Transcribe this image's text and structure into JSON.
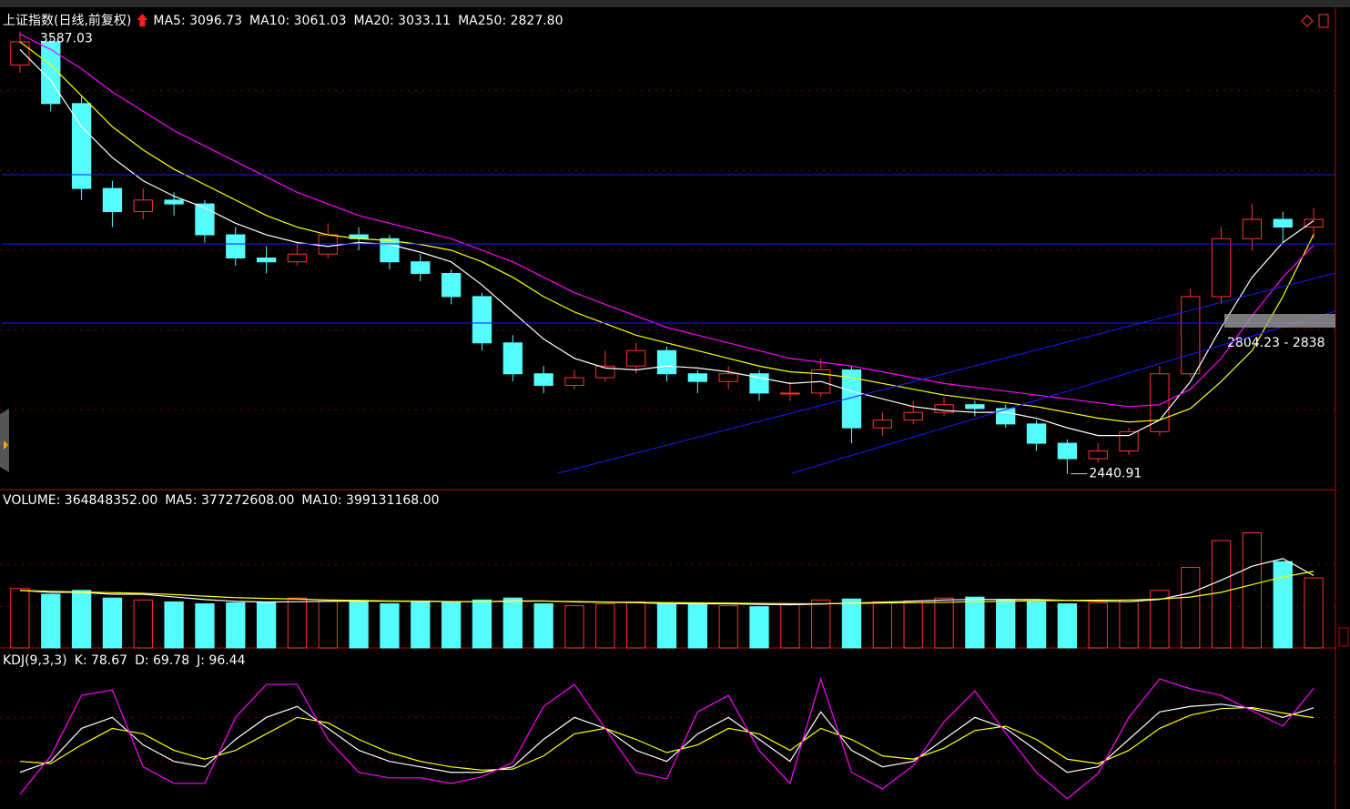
{
  "chart_data": [
    {
      "type": "candlestick",
      "title": "上证指数(日线,前复权)",
      "up_color": "#ff3232",
      "down_color": "#54fcfc",
      "candles": [
        [
          3500,
          3587.03,
          3480,
          3560
        ],
        [
          3560,
          3570,
          3380,
          3400
        ],
        [
          3400,
          3420,
          3150,
          3180
        ],
        [
          3180,
          3200,
          3080,
          3120
        ],
        [
          3120,
          3180,
          3100,
          3150
        ],
        [
          3150,
          3170,
          3110,
          3140
        ],
        [
          3140,
          3150,
          3040,
          3060
        ],
        [
          3060,
          3080,
          2980,
          3000
        ],
        [
          3000,
          3030,
          2960,
          2990
        ],
        [
          2990,
          3040,
          2980,
          3010
        ],
        [
          3010,
          3090,
          3000,
          3060
        ],
        [
          3060,
          3080,
          3020,
          3050
        ],
        [
          3050,
          3060,
          2970,
          2990
        ],
        [
          2990,
          3010,
          2940,
          2960
        ],
        [
          2960,
          2970,
          2880,
          2900
        ],
        [
          2900,
          2910,
          2760,
          2780
        ],
        [
          2780,
          2800,
          2680,
          2700
        ],
        [
          2700,
          2720,
          2650,
          2670
        ],
        [
          2670,
          2710,
          2660,
          2690
        ],
        [
          2690,
          2760,
          2680,
          2720
        ],
        [
          2720,
          2780,
          2700,
          2760
        ],
        [
          2760,
          2770,
          2680,
          2700
        ],
        [
          2700,
          2710,
          2650,
          2680
        ],
        [
          2680,
          2720,
          2660,
          2700
        ],
        [
          2700,
          2710,
          2630,
          2650
        ],
        [
          2650,
          2680,
          2630,
          2650
        ],
        [
          2650,
          2740,
          2640,
          2710
        ],
        [
          2710,
          2720,
          2520,
          2560
        ],
        [
          2560,
          2600,
          2540,
          2580
        ],
        [
          2580,
          2630,
          2570,
          2600
        ],
        [
          2600,
          2640,
          2590,
          2620
        ],
        [
          2620,
          2630,
          2590,
          2610
        ],
        [
          2610,
          2620,
          2560,
          2570
        ],
        [
          2570,
          2580,
          2500,
          2520
        ],
        [
          2520,
          2530,
          2440.91,
          2480
        ],
        [
          2480,
          2520,
          2470,
          2500
        ],
        [
          2500,
          2560,
          2490,
          2550
        ],
        [
          2550,
          2720,
          2540,
          2700
        ],
        [
          2700,
          2920,
          2690,
          2900
        ],
        [
          2900,
          3080,
          2880,
          3050
        ],
        [
          3050,
          3140,
          3020,
          3100
        ],
        [
          3100,
          3120,
          3040,
          3080
        ],
        [
          3080,
          3130,
          3050,
          3100
        ]
      ],
      "series": [
        {
          "name": "MA5",
          "color": "#ffffff",
          "values": [
            3540,
            3460,
            3340,
            3260,
            3200,
            3160,
            3130,
            3090,
            3060,
            3040,
            3030,
            3040,
            3035,
            3015,
            2990,
            2930,
            2860,
            2790,
            2740,
            2715,
            2710,
            2720,
            2715,
            2705,
            2690,
            2675,
            2680,
            2655,
            2635,
            2615,
            2605,
            2600,
            2600,
            2585,
            2560,
            2540,
            2540,
            2580,
            2680,
            2820,
            2950,
            3040,
            3096.73
          ]
        },
        {
          "name": "MA10",
          "color": "#ffff00",
          "values": [
            3560,
            3500,
            3420,
            3340,
            3280,
            3230,
            3190,
            3150,
            3110,
            3080,
            3060,
            3050,
            3045,
            3035,
            3020,
            2990,
            2950,
            2900,
            2860,
            2830,
            2800,
            2780,
            2760,
            2740,
            2720,
            2705,
            2700,
            2690,
            2675,
            2660,
            2645,
            2635,
            2625,
            2615,
            2600,
            2585,
            2575,
            2580,
            2610,
            2680,
            2760,
            2900,
            3061.03
          ]
        },
        {
          "name": "MA20",
          "color": "#ff00ff",
          "values": [
            3580,
            3540,
            3490,
            3430,
            3380,
            3330,
            3290,
            3250,
            3210,
            3170,
            3140,
            3110,
            3090,
            3070,
            3050,
            3020,
            2990,
            2950,
            2910,
            2880,
            2850,
            2820,
            2800,
            2780,
            2760,
            2740,
            2730,
            2720,
            2705,
            2690,
            2675,
            2665,
            2655,
            2645,
            2635,
            2625,
            2615,
            2620,
            2660,
            2740,
            2850,
            2950,
            3033.11
          ]
        }
      ],
      "legend": [
        {
          "label": "MA5: 3096.73",
          "value": 3096.73,
          "color": "#ffffff"
        },
        {
          "label": "MA10: 3061.03",
          "value": 3061.03,
          "color": "#ffff00"
        },
        {
          "label": "MA20: 3033.11",
          "value": 3033.11,
          "color": "#ff00ff"
        },
        {
          "label": "MA250: 2827.80",
          "value": 2827.8,
          "color": "#00ff00"
        }
      ],
      "annotations": [
        "2804.23 - 2838"
      ],
      "ylim": [
        2400,
        3640
      ],
      "grid": true
    },
    {
      "type": "volume",
      "values": [
        310000000.0,
        280000000.0,
        300000000.0,
        260000000.0,
        250000000.0,
        240000000.0,
        230000000.0,
        235000000.0,
        240000000.0,
        260000000.0,
        250000000.0,
        240000000.0,
        230000000.0,
        245000000.0,
        240000000.0,
        250000000.0,
        260000000.0,
        230000000.0,
        220000000.0,
        230000000.0,
        240000000.0,
        235000000.0,
        225000000.0,
        220000000.0,
        215000000.0,
        230000000.0,
        250000000.0,
        255000000.0,
        240000000.0,
        245000000.0,
        260000000.0,
        265000000.0,
        250000000.0,
        240000000.0,
        230000000.0,
        235000000.0,
        250000000.0,
        300000000.0,
        420000000.0,
        560000000.0,
        600000000.0,
        450000000.0,
        364848352
      ],
      "series": [
        {
          "name": "MA5",
          "color": "#ffffff",
          "values": [
            300000000.0,
            290000000.0,
            290000000.0,
            280000000.0,
            280000000.0,
            266000000.0,
            252000000.0,
            243000000.0,
            239000000.0,
            241000000.0,
            243000000.0,
            245000000.0,
            243000000.0,
            243000000.0,
            241000000.0,
            241000000.0,
            245000000.0,
            245000000.0,
            240000000.0,
            238000000.0,
            236000000.0,
            231000000.0,
            230000000.0,
            230000000.0,
            227000000.0,
            225000000.0,
            229000000.0,
            234000000.0,
            238000000.0,
            244000000.0,
            250000000.0,
            253000000.0,
            253000000.0,
            252000000.0,
            248000000.0,
            244000000.0,
            241000000.0,
            253000000.0,
            287000000.0,
            353000000.0,
            426000000.0,
            466000000.0,
            377272608
          ]
        },
        {
          "name": "MA10",
          "color": "#ffff00",
          "values": [
            300000000.0,
            295000000.0,
            292000000.0,
            288000000.0,
            285000000.0,
            278000000.0,
            270000000.0,
            262000000.0,
            258000000.0,
            255000000.0,
            250000000.0,
            248000000.0,
            245000000.0,
            244000000.0,
            242000000.0,
            241000000.0,
            243000000.0,
            244000000.0,
            242000000.0,
            240000000.0,
            238000000.0,
            236000000.0,
            235000000.0,
            234000000.0,
            232000000.0,
            231000000.0,
            230000000.0,
            232000000.0,
            234000000.0,
            236000000.0,
            238000000.0,
            241000000.0,
            243000000.0,
            246000000.0,
            248000000.0,
            249000000.0,
            250000000.0,
            255000000.0,
            265000000.0,
            290000000.0,
            330000000.0,
            370000000.0,
            399131168
          ]
        }
      ],
      "legend": [
        {
          "label": "VOLUME: 364848352.00",
          "value": 364848352,
          "color": "#ffffff"
        },
        {
          "label": "MA5: 377272608.00",
          "value": 377272608,
          "color": "#ffffff"
        },
        {
          "label": "MA10: 399131168.00",
          "value": 399131168,
          "color": "#ffff00"
        }
      ],
      "ylim": [
        0,
        650000000
      ],
      "grid": true
    },
    {
      "type": "line",
      "title": "KDJ(9,3,3)",
      "series": [
        {
          "name": "K",
          "color": "#ffffff",
          "values": [
            20,
            30,
            60,
            70,
            45,
            30,
            25,
            50,
            70,
            80,
            60,
            40,
            30,
            25,
            20,
            20,
            25,
            50,
            70,
            60,
            40,
            30,
            55,
            70,
            50,
            30,
            75,
            40,
            25,
            30,
            50,
            70,
            60,
            40,
            20,
            25,
            50,
            75,
            80,
            82,
            78,
            70,
            78.67
          ]
        },
        {
          "name": "D",
          "color": "#ffff00",
          "values": [
            30,
            28,
            45,
            60,
            55,
            40,
            32,
            40,
            55,
            70,
            65,
            50,
            38,
            30,
            25,
            22,
            23,
            35,
            55,
            60,
            50,
            38,
            45,
            60,
            55,
            40,
            60,
            50,
            35,
            32,
            42,
            58,
            62,
            50,
            32,
            28,
            40,
            60,
            72,
            78,
            79,
            74,
            69.78
          ]
        },
        {
          "name": "J",
          "color": "#ff00ff",
          "values": [
            0,
            35,
            90,
            95,
            25,
            10,
            10,
            70,
            100,
            100,
            50,
            20,
            15,
            15,
            10,
            16,
            29,
            80,
            100,
            60,
            20,
            14,
            75,
            90,
            40,
            10,
            105,
            20,
            5,
            26,
            66,
            94,
            56,
            20,
            -4,
            19,
            70,
            105,
            96,
            90,
            76,
            62,
            96.44
          ]
        }
      ],
      "legend": [
        {
          "label": "K: 78.67",
          "value": 78.67,
          "color": "#ffffff"
        },
        {
          "label": "D: 69.78",
          "value": 69.78,
          "color": "#ffff00"
        },
        {
          "label": "J: 96.44",
          "value": 96.44,
          "color": "#ff00ff"
        }
      ],
      "ylim": [
        -10,
        110
      ],
      "grid": true
    }
  ]
}
